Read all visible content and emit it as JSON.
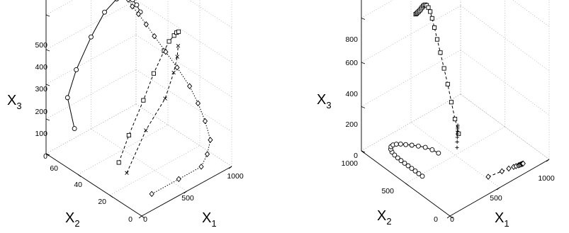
{
  "chart_data": [
    {
      "type": "line",
      "subtype": "3d",
      "title": "",
      "xlabel": "X",
      "xlabel_sub": "1",
      "ylabel": "X",
      "ylabel_sub": "2",
      "zlabel": "X",
      "zlabel_sub": "3",
      "xlim": [
        0,
        1000
      ],
      "ylim": [
        0,
        60
      ],
      "zlim": [
        0,
        500
      ],
      "xticks": [
        "0",
        "500",
        "1000"
      ],
      "yticks": [
        "0",
        "20",
        "40",
        "60"
      ],
      "zticks": [
        "0",
        "100",
        "200",
        "300",
        "400",
        "500"
      ],
      "grid": true,
      "series": [
        {
          "marker": "circle",
          "line": "solid",
          "points": [
            [
              50,
              45,
              110
            ],
            [
              150,
              55,
              155
            ],
            [
              300,
              58,
              205
            ],
            [
              500,
              60,
              265
            ],
            [
              650,
              60,
              315
            ],
            [
              750,
              58,
              345
            ],
            [
              800,
              55,
              355
            ],
            [
              820,
              52,
              350
            ],
            [
              830,
              50,
              340
            ],
            [
              835,
              48,
              325
            ]
          ]
        },
        {
          "marker": "square",
          "line": "dashed",
          "points": [
            [
              100,
              20,
              80
            ],
            [
              300,
              25,
              115
            ],
            [
              550,
              30,
              165
            ],
            [
              700,
              32,
              215
            ],
            [
              780,
              30,
              275
            ],
            [
              800,
              28,
              305
            ],
            [
              820,
              26,
              325
            ],
            [
              830,
              25,
              335
            ],
            [
              835,
              24,
              340
            ]
          ]
        },
        {
          "marker": "x",
          "line": "dashed",
          "points": [
            [
              100,
              15,
              65
            ],
            [
              400,
              20,
              130
            ],
            [
              650,
              22,
              180
            ],
            [
              780,
              24,
              230
            ],
            [
              820,
              24,
              270
            ],
            [
              830,
              24,
              300
            ]
          ]
        },
        {
          "marker": "diamond",
          "line": "dotted",
          "points": [
            [
              200,
              5,
              20
            ],
            [
              500,
              5,
              20
            ],
            [
              750,
              5,
              20
            ],
            [
              870,
              8,
              30
            ],
            [
              940,
              10,
              55
            ],
            [
              970,
              15,
              90
            ],
            [
              980,
              20,
              125
            ],
            [
              975,
              25,
              160
            ],
            [
              960,
              32,
              195
            ],
            [
              940,
              38,
              225
            ],
            [
              920,
              44,
              255
            ],
            [
              900,
              48,
              280
            ],
            [
              885,
              52,
              300
            ],
            [
              870,
              55,
              315
            ],
            [
              860,
              57,
              330
            ],
            [
              850,
              58,
              345
            ]
          ]
        }
      ]
    },
    {
      "type": "line",
      "subtype": "3d",
      "title": "",
      "xlabel": "X",
      "xlabel_sub": "1",
      "ylabel": "X",
      "ylabel_sub": "2",
      "zlabel": "X",
      "zlabel_sub": "3",
      "xlim": [
        0,
        1000
      ],
      "ylim": [
        0,
        1000
      ],
      "zlim": [
        0,
        800
      ],
      "xticks": [
        "0",
        "500",
        "1000"
      ],
      "yticks": [
        "0",
        "500",
        "1000"
      ],
      "zticks": [
        "0",
        "200",
        "400",
        "600",
        "800"
      ],
      "grid": true,
      "series": [
        {
          "marker": "circle",
          "line": "solid",
          "points": [
            [
              150,
              480,
              0
            ],
            [
              150,
              520,
              0
            ],
            [
              150,
              560,
              0
            ],
            [
              150,
              600,
              0
            ],
            [
              150,
              640,
              0
            ],
            [
              150,
              680,
              0
            ],
            [
              150,
              720,
              0
            ],
            [
              152,
              760,
              0
            ],
            [
              156,
              800,
              0
            ],
            [
              165,
              840,
              0
            ],
            [
              180,
              870,
              0
            ],
            [
              200,
              890,
              0
            ],
            [
              225,
              895,
              0
            ],
            [
              250,
              885,
              0
            ],
            [
              275,
              865,
              0
            ],
            [
              300,
              835,
              0
            ],
            [
              330,
              800,
              0
            ],
            [
              360,
              760,
              0
            ],
            [
              390,
              715,
              0
            ],
            [
              410,
              660,
              0
            ],
            [
              420,
              600,
              0
            ]
          ]
        },
        {
          "marker": "square",
          "line": "dashed",
          "points": [
            [
              440,
              880,
              540
            ],
            [
              450,
              880,
              541
            ],
            [
              460,
              880,
              543
            ],
            [
              470,
              879,
              545
            ],
            [
              480,
              878,
              548
            ],
            [
              490,
              877,
              552
            ],
            [
              500,
              876,
              556
            ],
            [
              510,
              875,
              560
            ],
            [
              520,
              874,
              562
            ],
            [
              530,
              872,
              562
            ],
            [
              540,
              868,
              558
            ],
            [
              550,
              860,
              548
            ],
            [
              560,
              850,
              530
            ],
            [
              570,
              840,
              500
            ],
            [
              580,
              825,
              460
            ],
            [
              590,
              805,
              410
            ],
            [
              600,
              780,
              355
            ],
            [
              610,
              750,
              290
            ],
            [
              620,
              720,
              225
            ],
            [
              630,
              690,
              150
            ],
            [
              640,
              660,
              80
            ],
            [
              650,
              630,
              20
            ]
          ]
        },
        {
          "marker": "plus",
          "line": "none",
          "points": [
            [
              500,
              480,
              40
            ],
            [
              510,
              490,
              60
            ],
            [
              520,
              500,
              75
            ],
            [
              530,
              510,
              85
            ],
            [
              540,
              520,
              92
            ],
            [
              550,
              530,
              97
            ],
            [
              560,
              540,
              100
            ],
            [
              570,
              550,
              102
            ]
          ]
        },
        {
          "marker": "diamond",
          "line": "dashed",
          "points": [
            [
              520,
              150,
              0
            ],
            [
              640,
              130,
              0
            ],
            [
              700,
              120,
              0
            ],
            [
              740,
              110,
              0
            ],
            [
              760,
              105,
              0
            ],
            [
              780,
              100,
              0
            ],
            [
              790,
              98,
              0
            ],
            [
              800,
              96,
              0
            ],
            [
              810,
              94,
              0
            ],
            [
              815,
              93,
              0
            ],
            [
              820,
              92,
              0
            ]
          ]
        }
      ]
    }
  ]
}
